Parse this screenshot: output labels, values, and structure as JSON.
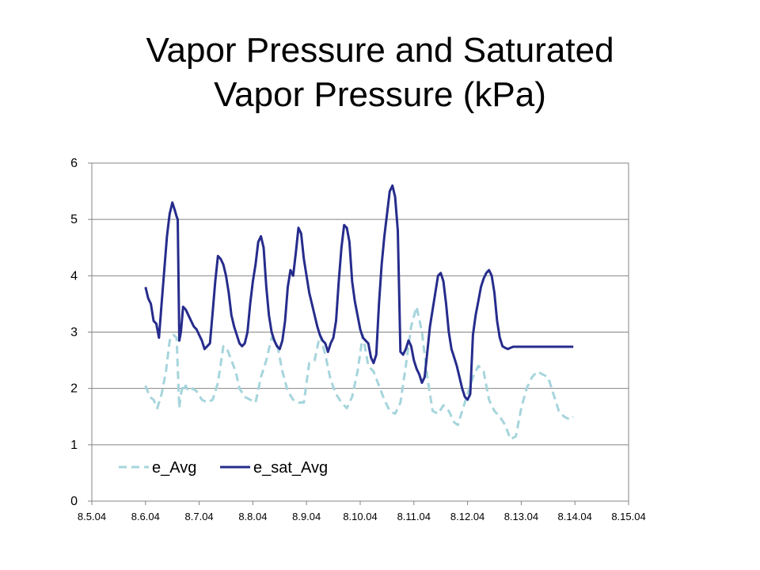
{
  "title_line1": "Vapor Pressure and Saturated",
  "title_line2": "Vapor Pressure (kPa)",
  "chart_data": {
    "type": "line",
    "title": "Vapor Pressure and Saturated Vapor Pressure (kPa)",
    "xlabel": "",
    "ylabel": "",
    "x_tick_labels": [
      "8.5.04",
      "8.6.04",
      "8.7.04",
      "8.8.04",
      "8.9.04",
      "8.10.04",
      "8.11.04",
      "8.12.04",
      "8.13.04",
      "8.14.04",
      "8.15.04"
    ],
    "y_ticks": [
      0,
      1,
      2,
      3,
      4,
      5,
      6
    ],
    "xlim": [
      0,
      10
    ],
    "ylim": [
      0,
      6
    ],
    "grid": "horizontal",
    "legend_position": "bottom-left inside",
    "series": [
      {
        "name": "e_Avg",
        "color": "#a6d5dc",
        "style": "dashed",
        "x": [
          1.0,
          1.08,
          1.15,
          1.22,
          1.3,
          1.38,
          1.45,
          1.52,
          1.58,
          1.63,
          1.66,
          1.7,
          1.72,
          1.75,
          1.8,
          1.88,
          1.95,
          2.05,
          2.15,
          2.25,
          2.35,
          2.45,
          2.52,
          2.6,
          2.68,
          2.75,
          2.85,
          2.95,
          3.05,
          3.15,
          3.25,
          3.35,
          3.45,
          3.55,
          3.65,
          3.75,
          3.85,
          3.95,
          4.05,
          4.15,
          4.25,
          4.35,
          4.45,
          4.55,
          4.65,
          4.75,
          4.85,
          4.95,
          5.05,
          5.15,
          5.25,
          5.35,
          5.45,
          5.55,
          5.65,
          5.75,
          5.85,
          5.95,
          6.05,
          6.15,
          6.25,
          6.35,
          6.45,
          6.55,
          6.65,
          6.7,
          6.75,
          6.82,
          6.9,
          7.0,
          7.1,
          7.2,
          7.3,
          7.4,
          7.5,
          7.6,
          7.7,
          7.8,
          7.9,
          8.0,
          8.1,
          8.2,
          8.3,
          8.4,
          8.5,
          8.6,
          8.7,
          8.8,
          8.9,
          8.97
        ],
        "values": [
          2.05,
          1.85,
          1.8,
          1.65,
          1.9,
          2.3,
          2.85,
          2.95,
          2.9,
          1.65,
          1.9,
          2.05,
          2.0,
          2.05,
          1.95,
          2.0,
          1.95,
          1.8,
          1.75,
          1.8,
          2.1,
          2.75,
          2.7,
          2.5,
          2.3,
          2.0,
          1.85,
          1.8,
          1.75,
          2.2,
          2.5,
          2.9,
          2.8,
          2.3,
          1.95,
          1.8,
          1.75,
          1.75,
          2.45,
          2.5,
          2.95,
          2.6,
          2.15,
          1.9,
          1.75,
          1.65,
          1.85,
          2.3,
          2.95,
          2.4,
          2.3,
          2.05,
          1.8,
          1.6,
          1.55,
          1.75,
          2.4,
          3.1,
          3.45,
          3.0,
          2.2,
          1.6,
          1.55,
          1.7,
          1.6,
          1.5,
          1.4,
          1.35,
          1.6,
          1.9,
          2.2,
          2.4,
          2.3,
          1.8,
          1.6,
          1.5,
          1.35,
          1.1,
          1.15,
          1.65,
          2.0,
          2.2,
          2.3,
          2.25,
          2.2,
          1.9,
          1.6,
          1.5,
          1.45,
          1.5
        ]
      },
      {
        "name": "e_sat_Avg",
        "color": "#262c8c",
        "style": "solid",
        "x": [
          1.0,
          1.05,
          1.1,
          1.15,
          1.2,
          1.25,
          1.3,
          1.35,
          1.4,
          1.45,
          1.5,
          1.55,
          1.58,
          1.6,
          1.63,
          1.66,
          1.7,
          1.75,
          1.8,
          1.85,
          1.9,
          1.95,
          2.0,
          2.05,
          2.1,
          2.15,
          2.2,
          2.25,
          2.3,
          2.35,
          2.4,
          2.45,
          2.5,
          2.55,
          2.6,
          2.65,
          2.7,
          2.75,
          2.8,
          2.85,
          2.9,
          2.95,
          3.0,
          3.05,
          3.1,
          3.15,
          3.2,
          3.25,
          3.3,
          3.35,
          3.4,
          3.45,
          3.5,
          3.55,
          3.6,
          3.65,
          3.7,
          3.75,
          3.8,
          3.85,
          3.9,
          3.95,
          4.0,
          4.05,
          4.1,
          4.15,
          4.2,
          4.25,
          4.3,
          4.35,
          4.4,
          4.45,
          4.5,
          4.55,
          4.6,
          4.65,
          4.7,
          4.75,
          4.8,
          4.85,
          4.9,
          4.95,
          5.0,
          5.05,
          5.1,
          5.15,
          5.2,
          5.25,
          5.3,
          5.35,
          5.4,
          5.45,
          5.5,
          5.55,
          5.6,
          5.65,
          5.7,
          5.75,
          5.8,
          5.85,
          5.9,
          5.95,
          6.0,
          6.05,
          6.1,
          6.15,
          6.2,
          6.25,
          6.3,
          6.35,
          6.4,
          6.45,
          6.5,
          6.55,
          6.6,
          6.65,
          6.7,
          6.75,
          6.8,
          6.85,
          6.9,
          6.95,
          7.0,
          7.05,
          7.1,
          7.15,
          7.2,
          7.25,
          7.3,
          7.35,
          7.4,
          7.45,
          7.5,
          7.55,
          7.6,
          7.65,
          7.7,
          7.75,
          7.8,
          7.85,
          7.9,
          7.95,
          8.0,
          8.05,
          8.1,
          8.15,
          8.2,
          8.25,
          8.3,
          8.35,
          8.4,
          8.45,
          8.5,
          8.55,
          8.6,
          8.65,
          8.7,
          8.75,
          8.8,
          8.85,
          8.9,
          8.95,
          8.97
        ],
        "values": [
          3.8,
          3.6,
          3.5,
          3.2,
          3.15,
          2.9,
          3.5,
          4.1,
          4.7,
          5.1,
          5.3,
          5.15,
          5.05,
          5.0,
          2.85,
          3.0,
          3.45,
          3.4,
          3.3,
          3.2,
          3.1,
          3.05,
          2.95,
          2.85,
          2.7,
          2.75,
          2.8,
          3.35,
          3.9,
          4.35,
          4.3,
          4.2,
          4.0,
          3.7,
          3.3,
          3.1,
          2.95,
          2.8,
          2.75,
          2.8,
          3.0,
          3.5,
          3.9,
          4.2,
          4.6,
          4.7,
          4.5,
          3.8,
          3.3,
          3.0,
          2.85,
          2.75,
          2.7,
          2.85,
          3.2,
          3.8,
          4.1,
          4.0,
          4.4,
          4.85,
          4.75,
          4.3,
          4.0,
          3.7,
          3.5,
          3.3,
          3.1,
          2.95,
          2.85,
          2.8,
          2.65,
          2.8,
          2.9,
          3.2,
          3.9,
          4.5,
          4.9,
          4.85,
          4.6,
          3.9,
          3.55,
          3.3,
          3.05,
          2.9,
          2.85,
          2.8,
          2.55,
          2.45,
          2.6,
          3.5,
          4.2,
          4.7,
          5.1,
          5.5,
          5.6,
          5.4,
          4.8,
          2.65,
          2.6,
          2.7,
          2.85,
          2.75,
          2.5,
          2.35,
          2.25,
          2.1,
          2.2,
          2.65,
          3.1,
          3.4,
          3.7,
          4.0,
          4.05,
          3.9,
          3.5,
          3.0,
          2.7,
          2.55,
          2.4,
          2.2,
          2.0,
          1.85,
          1.8,
          1.9,
          2.95,
          3.3,
          3.55,
          3.8,
          3.95,
          4.05,
          4.1,
          4.0,
          3.7,
          3.2,
          2.9,
          2.75,
          2.72,
          2.7,
          2.72,
          2.74,
          2.74,
          2.74,
          2.74,
          2.74,
          2.74,
          2.74,
          2.74,
          2.74,
          2.74,
          2.74,
          2.74,
          2.74,
          2.74,
          2.74,
          2.74,
          2.74,
          2.74,
          2.74,
          2.74,
          2.74,
          2.74,
          2.74,
          2.74
        ]
      }
    ]
  }
}
